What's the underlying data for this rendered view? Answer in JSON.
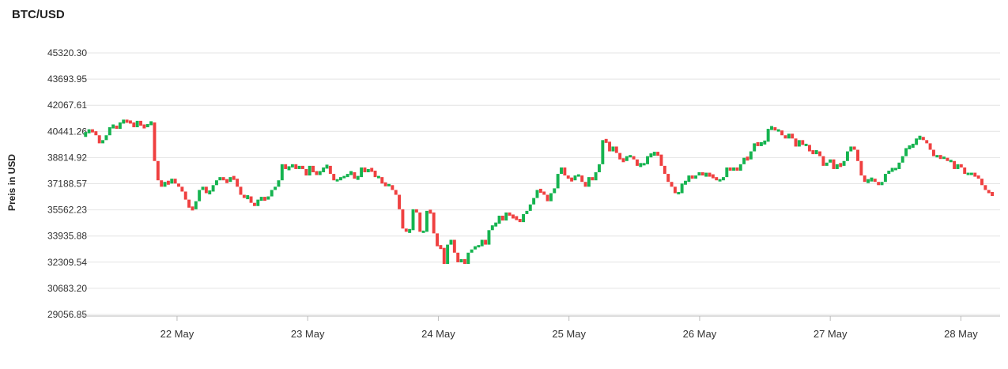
{
  "chart_data": {
    "type": "candlestick",
    "title": "BTC/USD",
    "ylabel": "Preis in USD",
    "ylim": [
      29056.85,
      45320.3
    ],
    "yticks": [
      "45320.30",
      "43693.95",
      "42067.61",
      "40441.26",
      "38814.92",
      "37188.57",
      "35562.23",
      "33935.88",
      "32309.54",
      "30683.20",
      "29056.85"
    ],
    "xticks": [
      "22 May",
      "23 May",
      "24 May",
      "25 May",
      "26 May",
      "27 May",
      "28 May"
    ],
    "x_domain": [
      -0.75,
      6.3
    ],
    "up_color": "#15b34f",
    "down_color": "#ef4040",
    "grid": true,
    "legend": "none",
    "series": [
      {
        "close": [
          40400,
          40500,
          40450,
          40200,
          39700,
          39900,
          40200,
          40700,
          40800,
          40600,
          41000,
          41100,
          41050,
          41000,
          40700,
          41100,
          40800,
          40700,
          40900,
          41000,
          38600,
          37400,
          37000,
          37300,
          37200,
          37500,
          37200,
          37000,
          36700,
          36200,
          35700,
          35600,
          36100,
          36800,
          37000,
          36600,
          36700,
          37100,
          37400,
          37600,
          37400,
          37300,
          37600,
          37500,
          37000,
          36500,
          36300,
          36400,
          36000,
          35800,
          36200,
          36300,
          36200,
          36400,
          36800,
          37000,
          37400,
          38400,
          38100,
          38200,
          38400,
          38100,
          38300,
          38100,
          37700,
          38300,
          37900,
          37800,
          37900,
          38200,
          38300,
          37800,
          37400,
          37400,
          37600,
          37600,
          37800,
          37900,
          37500,
          37600,
          38200,
          37900,
          38100,
          38000,
          37600,
          37600,
          37200,
          37100,
          37100,
          36800,
          36500,
          35600,
          34400,
          34200,
          34300,
          35600,
          35400,
          34200,
          34200,
          35500,
          35400,
          34100,
          33300,
          33200,
          32200,
          33400,
          33700,
          32900,
          32300,
          32500,
          32200,
          32900,
          33100,
          33300,
          33300,
          33700,
          33400,
          34300,
          34600,
          34700,
          35200,
          34900,
          35400,
          35200,
          35100,
          35000,
          34800,
          35300,
          35500,
          35900,
          36300,
          36800,
          36700,
          36500,
          36100,
          36600,
          36900,
          37800,
          38200,
          37700,
          37500,
          37400,
          37700,
          37700,
          37300,
          37000,
          37600,
          37400,
          37900,
          38400,
          39900,
          39800,
          39200,
          39500,
          39100,
          38700,
          38600,
          38900,
          38900,
          38700,
          38300,
          38400,
          38400,
          38900,
          39000,
          39100,
          39000,
          38300,
          37800,
          37300,
          37000,
          36600,
          36600,
          37200,
          37300,
          37700,
          37500,
          37700,
          37900,
          37700,
          37800,
          37700,
          37600,
          37400,
          37400,
          37600,
          38200,
          38000,
          38200,
          38000,
          38400,
          38800,
          38700,
          39200,
          39700,
          39600,
          39700,
          39800,
          40600,
          40700,
          40500,
          40500,
          40200,
          40000,
          40300,
          40000,
          39500,
          39900,
          39600,
          39600,
          39200,
          39100,
          39200,
          38900,
          38300,
          38500,
          38700,
          38100,
          38400,
          38300,
          38600,
          39200,
          39500,
          39300,
          38600,
          37700,
          37300,
          37400,
          37500,
          37300,
          37100,
          37300,
          37800,
          38000,
          38100,
          38100,
          38500,
          38900,
          39400,
          39500,
          39600,
          40000,
          40100,
          39900,
          39700,
          39300,
          38900,
          38900,
          38800,
          38800,
          38600,
          38600,
          38100,
          38400,
          38200,
          37800,
          37800,
          37800,
          37700,
          37500,
          37100,
          36800,
          36600,
          36500
        ]
      }
    ]
  }
}
